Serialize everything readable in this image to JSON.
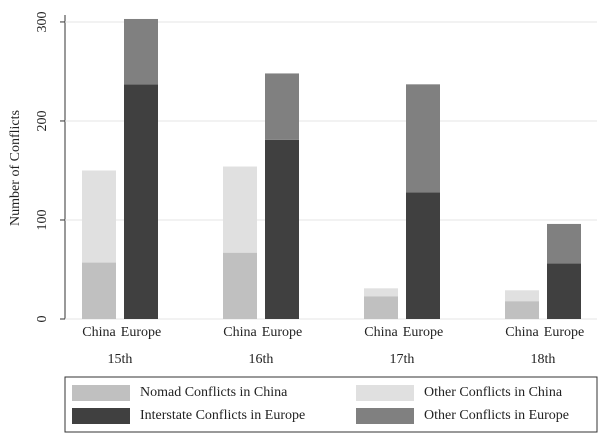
{
  "chart_data": {
    "type": "stacked-grouped-bar",
    "ylabel": "Number of Conflicts",
    "categories": [
      "15th",
      "16th",
      "17th",
      "18th"
    ],
    "bar_labels": [
      "China",
      "Europe"
    ],
    "series": [
      {
        "name": "Nomad Conflicts in China",
        "color": "#c0c0c0",
        "stack": "China",
        "values": [
          57,
          67,
          23,
          18
        ]
      },
      {
        "name": "Other Conflicts in China",
        "color": "#e0e0e0",
        "stack": "China",
        "values": [
          93,
          87,
          8,
          11
        ]
      },
      {
        "name": "Interstate Conflicts in Europe",
        "color": "#404040",
        "stack": "Europe",
        "values": [
          237,
          181,
          128,
          56
        ]
      },
      {
        "name": "Other Conflicts in Europe",
        "color": "#808080",
        "stack": "Europe",
        "values": [
          66,
          67,
          109,
          40
        ]
      }
    ],
    "ylim": [
      0,
      305
    ],
    "yticks": [
      0,
      100,
      200,
      300
    ],
    "grid": true
  }
}
